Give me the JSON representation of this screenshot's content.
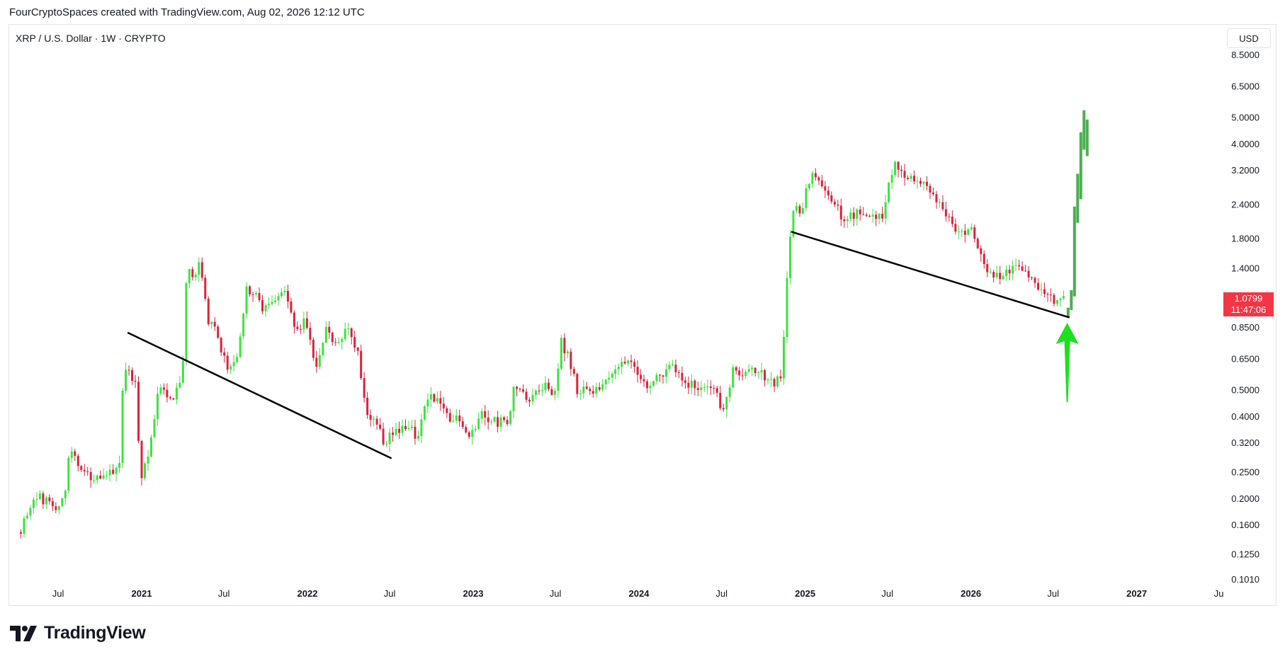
{
  "header": {
    "caption": "FourCryptoSpaces created with TradingView.com, Aug 02, 2026 12:12 UTC"
  },
  "symbol": {
    "title": "XRP / U.S. Dollar · 1W · CRYPTO"
  },
  "toolbar": {
    "currency_label": "USD"
  },
  "last_price": {
    "value": "1.0799",
    "countdown": "11:47:06",
    "color": "#f23645"
  },
  "brand": {
    "name": "TradingView"
  },
  "colors": {
    "up": "#3fe23f",
    "down": "#d8243a",
    "projection": "#4caf50",
    "trendline": "#000000",
    "arrow": "#1ee01e"
  },
  "chart_data": {
    "type": "candlestick",
    "scale": "log",
    "interval": "1W",
    "x_range": [
      "2020-04-10",
      "2027-07-10"
    ],
    "ylim": [
      0.1,
      8.5
    ],
    "y_ticks": [
      {
        "value": 8.5,
        "label": "8.5000"
      },
      {
        "value": 6.5,
        "label": "6.5000"
      },
      {
        "value": 5.0,
        "label": "5.0000"
      },
      {
        "value": 4.0,
        "label": "4.0000"
      },
      {
        "value": 3.2,
        "label": "3.2000"
      },
      {
        "value": 2.4,
        "label": "2.4000"
      },
      {
        "value": 1.8,
        "label": "1.8000"
      },
      {
        "value": 1.4,
        "label": "1.4000"
      },
      {
        "value": 0.85,
        "label": "0.8500"
      },
      {
        "value": 0.65,
        "label": "0.6500"
      },
      {
        "value": 0.5,
        "label": "0.5000"
      },
      {
        "value": 0.4,
        "label": "0.4000"
      },
      {
        "value": 0.32,
        "label": "0.3200"
      },
      {
        "value": 0.25,
        "label": "0.2500"
      },
      {
        "value": 0.2,
        "label": "0.2000"
      },
      {
        "value": 0.16,
        "label": "0.1600"
      },
      {
        "value": 0.125,
        "label": "0.1250"
      },
      {
        "value": 0.101,
        "label": "0.1010"
      }
    ],
    "x_ticks": [
      {
        "date": "2020-07-01",
        "label": "Jul",
        "bold": false
      },
      {
        "date": "2021-01-01",
        "label": "2021",
        "bold": true
      },
      {
        "date": "2021-07-01",
        "label": "Jul",
        "bold": false
      },
      {
        "date": "2022-01-01",
        "label": "2022",
        "bold": true
      },
      {
        "date": "2022-07-01",
        "label": "Jul",
        "bold": false
      },
      {
        "date": "2023-01-01",
        "label": "2023",
        "bold": true
      },
      {
        "date": "2023-07-01",
        "label": "Jul",
        "bold": false
      },
      {
        "date": "2024-01-01",
        "label": "2024",
        "bold": true
      },
      {
        "date": "2024-07-01",
        "label": "Jul",
        "bold": false
      },
      {
        "date": "2025-01-01",
        "label": "2025",
        "bold": true
      },
      {
        "date": "2025-07-01",
        "label": "Jul",
        "bold": false
      },
      {
        "date": "2026-01-01",
        "label": "2026",
        "bold": true
      },
      {
        "date": "2026-07-01",
        "label": "Jul",
        "bold": false
      },
      {
        "date": "2027-01-01",
        "label": "2027",
        "bold": true
      },
      {
        "date": "2027-07-01",
        "label": "Ju",
        "bold": false
      }
    ],
    "price_path": [
      [
        "2020-04-10",
        0.15
      ],
      [
        "2020-05-01",
        0.19
      ],
      [
        "2020-05-20",
        0.2
      ],
      [
        "2020-06-10",
        0.19
      ],
      [
        "2020-06-25",
        0.175
      ],
      [
        "2020-07-15",
        0.2
      ],
      [
        "2020-07-25",
        0.29
      ],
      [
        "2020-08-10",
        0.28
      ],
      [
        "2020-08-25",
        0.24
      ],
      [
        "2020-09-20",
        0.24
      ],
      [
        "2020-10-20",
        0.25
      ],
      [
        "2020-11-14",
        0.26
      ],
      [
        "2020-11-21",
        0.55
      ],
      [
        "2020-12-05",
        0.6
      ],
      [
        "2020-12-20",
        0.5
      ],
      [
        "2020-12-29",
        0.22
      ],
      [
        "2021-01-10",
        0.27
      ],
      [
        "2021-01-20",
        0.3
      ],
      [
        "2021-02-01",
        0.45
      ],
      [
        "2021-02-15",
        0.55
      ],
      [
        "2021-03-01",
        0.45
      ],
      [
        "2021-03-20",
        0.5
      ],
      [
        "2021-04-01",
        0.6
      ],
      [
        "2021-04-10",
        1.38
      ],
      [
        "2021-04-25",
        1.3
      ],
      [
        "2021-05-10",
        1.45
      ],
      [
        "2021-05-25",
        0.92
      ],
      [
        "2021-06-15",
        0.8
      ],
      [
        "2021-07-01",
        0.65
      ],
      [
        "2021-07-20",
        0.58
      ],
      [
        "2021-08-05",
        0.75
      ],
      [
        "2021-08-20",
        1.2
      ],
      [
        "2021-09-10",
        1.1
      ],
      [
        "2021-09-25",
        0.95
      ],
      [
        "2021-10-15",
        1.05
      ],
      [
        "2021-11-10",
        1.15
      ],
      [
        "2021-11-25",
        1.0
      ],
      [
        "2021-12-10",
        0.8
      ],
      [
        "2021-12-25",
        0.9
      ],
      [
        "2022-01-20",
        0.62
      ],
      [
        "2022-02-10",
        0.82
      ],
      [
        "2022-03-05",
        0.76
      ],
      [
        "2022-03-30",
        0.82
      ],
      [
        "2022-04-20",
        0.7
      ],
      [
        "2022-05-10",
        0.42
      ],
      [
        "2022-06-01",
        0.38
      ],
      [
        "2022-06-20",
        0.32
      ],
      [
        "2022-07-20",
        0.36
      ],
      [
        "2022-08-10",
        0.37
      ],
      [
        "2022-09-01",
        0.33
      ],
      [
        "2022-09-20",
        0.48
      ],
      [
        "2022-10-20",
        0.46
      ],
      [
        "2022-11-10",
        0.38
      ],
      [
        "2022-12-01",
        0.39
      ],
      [
        "2022-12-25",
        0.34
      ],
      [
        "2023-01-20",
        0.4
      ],
      [
        "2023-02-15",
        0.38
      ],
      [
        "2023-03-20",
        0.38
      ],
      [
        "2023-04-01",
        0.52
      ],
      [
        "2023-05-01",
        0.46
      ],
      [
        "2023-06-01",
        0.52
      ],
      [
        "2023-07-01",
        0.48
      ],
      [
        "2023-07-13",
        0.76
      ],
      [
        "2023-08-01",
        0.65
      ],
      [
        "2023-08-17",
        0.5
      ],
      [
        "2023-09-15",
        0.5
      ],
      [
        "2023-10-15",
        0.52
      ],
      [
        "2023-11-15",
        0.62
      ],
      [
        "2023-12-15",
        0.62
      ],
      [
        "2024-01-15",
        0.52
      ],
      [
        "2024-02-15",
        0.55
      ],
      [
        "2024-03-10",
        0.63
      ],
      [
        "2024-04-15",
        0.52
      ],
      [
        "2024-05-15",
        0.52
      ],
      [
        "2024-06-20",
        0.48
      ],
      [
        "2024-07-05",
        0.42
      ],
      [
        "2024-07-25",
        0.58
      ],
      [
        "2024-08-20",
        0.58
      ],
      [
        "2024-09-20",
        0.58
      ],
      [
        "2024-10-20",
        0.52
      ],
      [
        "2024-11-10",
        0.55
      ],
      [
        "2024-11-20",
        1.1
      ],
      [
        "2024-12-03",
        2.4
      ],
      [
        "2024-12-20",
        2.2
      ],
      [
        "2025-01-15",
        3.1
      ],
      [
        "2025-02-01",
        2.8
      ],
      [
        "2025-03-01",
        2.4
      ],
      [
        "2025-04-01",
        2.1
      ],
      [
        "2025-05-01",
        2.3
      ],
      [
        "2025-06-01",
        2.2
      ],
      [
        "2025-06-20",
        2.1
      ],
      [
        "2025-07-15",
        3.4
      ],
      [
        "2025-08-15",
        3.0
      ],
      [
        "2025-09-15",
        2.9
      ],
      [
        "2025-10-10",
        2.5
      ],
      [
        "2025-11-01",
        2.3
      ],
      [
        "2025-12-01",
        1.9
      ],
      [
        "2026-01-01",
        1.95
      ],
      [
        "2026-02-01",
        1.4
      ],
      [
        "2026-03-01",
        1.3
      ],
      [
        "2026-04-01",
        1.38
      ],
      [
        "2026-04-20",
        1.4
      ],
      [
        "2026-05-15",
        1.25
      ],
      [
        "2026-06-15",
        1.1
      ],
      [
        "2026-07-10",
        1.05
      ],
      [
        "2026-07-25",
        1.0799
      ]
    ],
    "projection_bars": [
      {
        "date": "2026-08-03",
        "open": 0.92,
        "close": 1.0
      },
      {
        "date": "2026-08-10",
        "open": 0.98,
        "close": 1.16
      },
      {
        "date": "2026-08-17",
        "open": 1.1,
        "close": 2.35
      },
      {
        "date": "2026-08-24",
        "open": 2.05,
        "close": 3.1
      },
      {
        "date": "2026-08-31",
        "open": 2.5,
        "close": 4.4
      },
      {
        "date": "2026-09-07",
        "open": 3.8,
        "close": 5.3
      },
      {
        "date": "2026-09-14",
        "open": 3.6,
        "close": 4.9
      }
    ],
    "trendlines": [
      {
        "from": [
          "2020-12-01",
          0.81
        ],
        "to": [
          "2022-07-05",
          0.28
        ]
      },
      {
        "from": [
          "2024-12-01",
          1.9
        ],
        "to": [
          "2026-08-06",
          0.92
        ]
      }
    ],
    "annotation": {
      "type": "arrow-up",
      "date": "2026-08-01",
      "top": 0.88,
      "bottom": 0.45
    },
    "legend": "none",
    "grid": false
  }
}
